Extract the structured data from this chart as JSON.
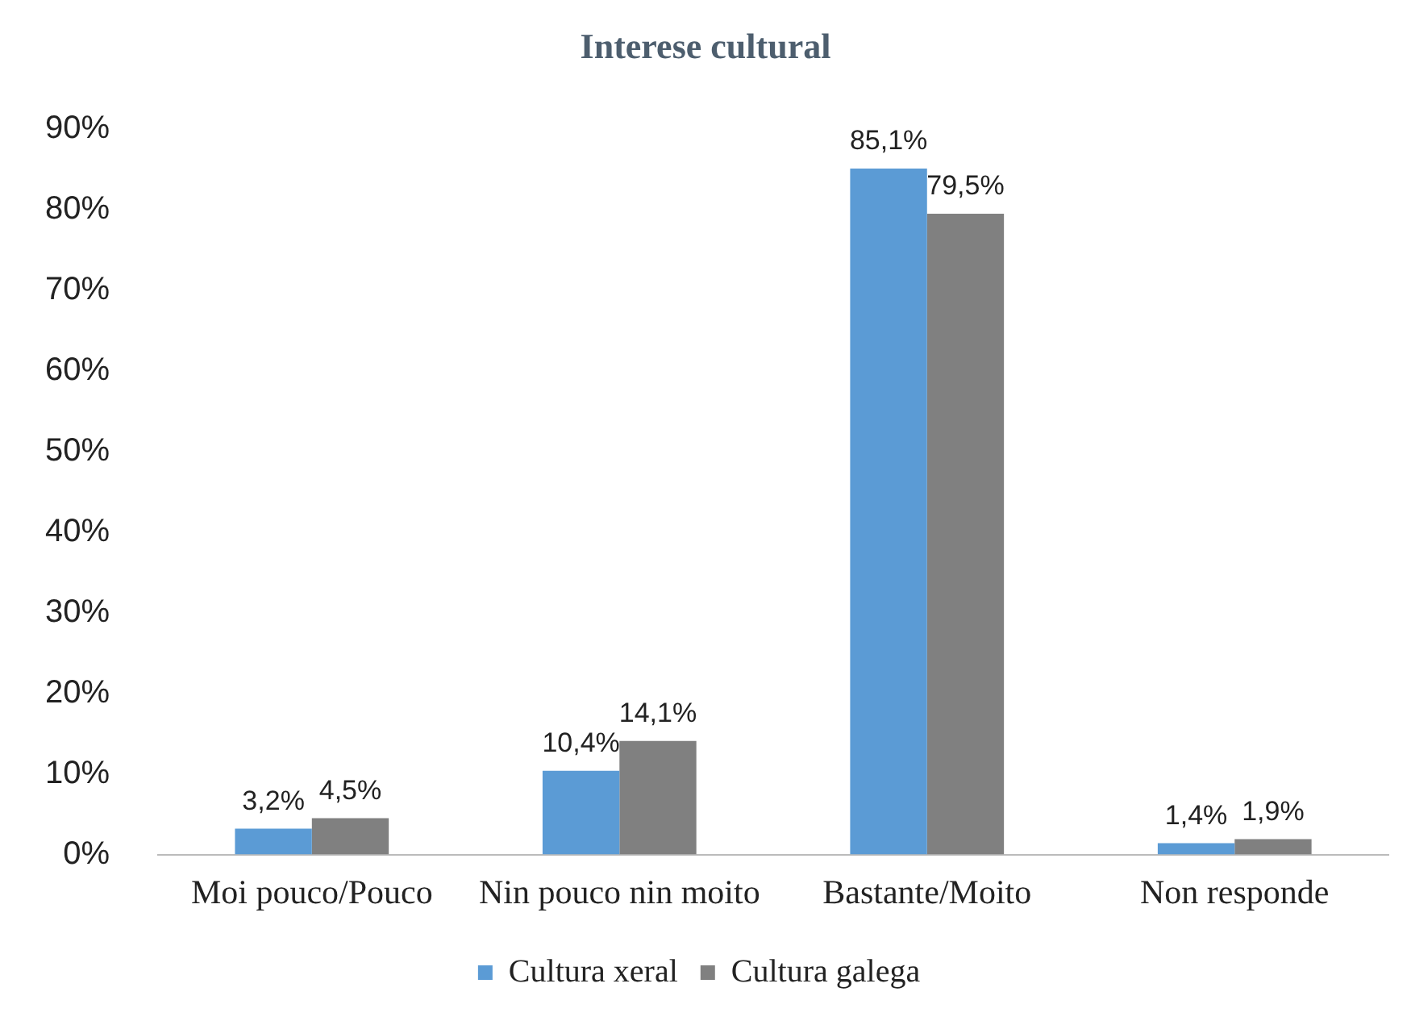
{
  "chart_data": {
    "type": "bar",
    "title": "Interese cultural",
    "categories": [
      "Moi pouco/Pouco",
      "Nin pouco nin moito",
      "Bastante/Moito",
      "Non responde"
    ],
    "series": [
      {
        "name": "Cultura xeral",
        "color": "#5b9bd5",
        "values": [
          3.2,
          10.4,
          85.1,
          1.4
        ],
        "value_labels": [
          "3,2%",
          "10,4%",
          "85,1%",
          "1,4%"
        ]
      },
      {
        "name": "Cultura galega",
        "color": "#808080",
        "values": [
          4.5,
          14.1,
          79.5,
          1.9
        ],
        "value_labels": [
          "4,5%",
          "14,1%",
          "79,5%",
          "1,9%"
        ]
      }
    ],
    "ylim": [
      0,
      90
    ],
    "yticks": [
      {
        "value": 0,
        "label": "0%"
      },
      {
        "value": 10,
        "label": "10%"
      },
      {
        "value": 20,
        "label": "20%"
      },
      {
        "value": 30,
        "label": "30%"
      },
      {
        "value": 40,
        "label": "40%"
      },
      {
        "value": 50,
        "label": "50%"
      },
      {
        "value": 60,
        "label": "60%"
      },
      {
        "value": 70,
        "label": "70%"
      },
      {
        "value": 80,
        "label": "80%"
      },
      {
        "value": 90,
        "label": "90%"
      }
    ],
    "grid": false,
    "legend": "bottom"
  }
}
